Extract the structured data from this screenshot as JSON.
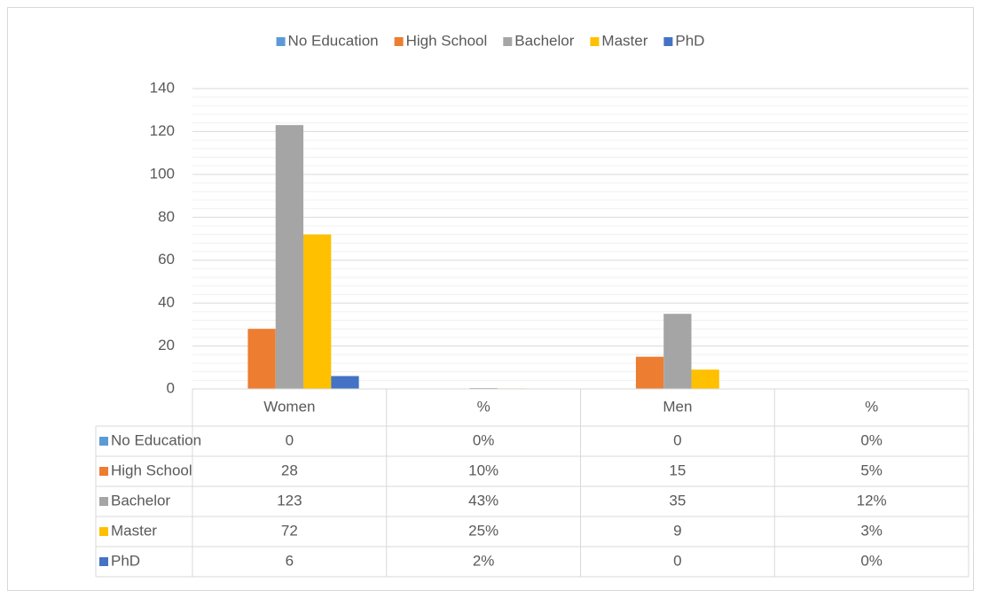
{
  "chart_data": {
    "type": "bar",
    "categories": [
      "Women",
      "%",
      "Men",
      "%"
    ],
    "series": [
      {
        "name": "No Education",
        "color": "#5b9bd5",
        "values": [
          0,
          0,
          0,
          0
        ],
        "value_labels": [
          "0",
          "0%",
          "0",
          "0%"
        ]
      },
      {
        "name": "High School",
        "color": "#ed7d31",
        "values": [
          28,
          0.1,
          15,
          0.05
        ],
        "value_labels": [
          "28",
          "10%",
          "15",
          "5%"
        ]
      },
      {
        "name": "Bachelor",
        "color": "#a5a5a5",
        "values": [
          123,
          0.43,
          35,
          0.12
        ],
        "value_labels": [
          "123",
          "43%",
          "35",
          "12%"
        ]
      },
      {
        "name": "Master",
        "color": "#ffc000",
        "values": [
          72,
          0.25,
          9,
          0.03
        ],
        "value_labels": [
          "72",
          "25%",
          "9",
          "3%"
        ]
      },
      {
        "name": "PhD",
        "color": "#4472c4",
        "values": [
          6,
          0.02,
          0,
          0
        ],
        "value_labels": [
          "6",
          "2%",
          "0",
          "0%"
        ]
      }
    ],
    "ylim": [
      0,
      140
    ],
    "yticks": [
      0,
      20,
      40,
      60,
      80,
      100,
      120,
      140
    ],
    "grid": true,
    "legend": "top"
  }
}
